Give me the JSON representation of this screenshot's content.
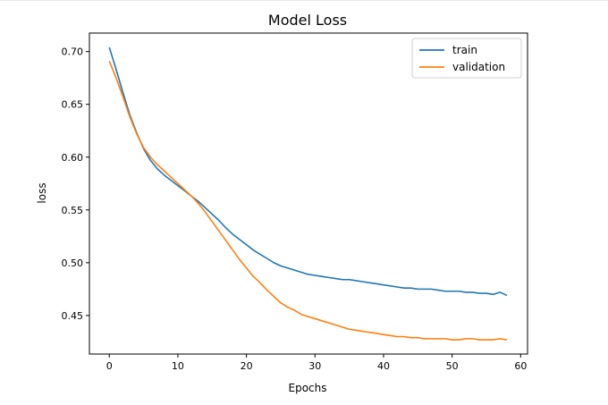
{
  "chart_data": {
    "type": "line",
    "title": "Model Loss",
    "xlabel": "Epochs",
    "ylabel": "loss",
    "xlim": [
      -2.9,
      61.0
    ],
    "ylim": [
      0.4135,
      0.7175
    ],
    "xticks": [
      0,
      10,
      20,
      30,
      40,
      50,
      60
    ],
    "yticks": [
      0.45,
      0.5,
      0.55,
      0.6,
      0.65,
      0.7
    ],
    "ytick_labels": [
      "0.45",
      "0.50",
      "0.55",
      "0.60",
      "0.65",
      "0.70"
    ],
    "grid": false,
    "legend": "top-right",
    "series": [
      {
        "name": "train",
        "color": "#1f77b4",
        "values": [
          0.704,
          0.683,
          0.661,
          0.64,
          0.623,
          0.608,
          0.597,
          0.589,
          0.583,
          0.578,
          0.573,
          0.568,
          0.563,
          0.558,
          0.552,
          0.546,
          0.54,
          0.533,
          0.527,
          0.522,
          0.517,
          0.512,
          0.508,
          0.504,
          0.5,
          0.497,
          0.495,
          0.493,
          0.491,
          0.489,
          0.488,
          0.487,
          0.486,
          0.485,
          0.484,
          0.484,
          0.483,
          0.482,
          0.481,
          0.48,
          0.479,
          0.478,
          0.477,
          0.476,
          0.476,
          0.475,
          0.475,
          0.475,
          0.474,
          0.473,
          0.473,
          0.473,
          0.472,
          0.472,
          0.471,
          0.471,
          0.47,
          0.472,
          0.469
        ]
      },
      {
        "name": "validation",
        "color": "#ff7f0e",
        "values": [
          0.691,
          0.675,
          0.657,
          0.638,
          0.622,
          0.609,
          0.6,
          0.593,
          0.587,
          0.581,
          0.575,
          0.569,
          0.563,
          0.556,
          0.548,
          0.539,
          0.53,
          0.521,
          0.512,
          0.503,
          0.495,
          0.487,
          0.481,
          0.474,
          0.468,
          0.462,
          0.458,
          0.455,
          0.451,
          0.449,
          0.447,
          0.445,
          0.443,
          0.441,
          0.439,
          0.437,
          0.436,
          0.435,
          0.434,
          0.433,
          0.432,
          0.431,
          0.43,
          0.43,
          0.429,
          0.429,
          0.428,
          0.428,
          0.428,
          0.428,
          0.427,
          0.427,
          0.428,
          0.428,
          0.427,
          0.427,
          0.427,
          0.428,
          0.427
        ]
      }
    ]
  }
}
